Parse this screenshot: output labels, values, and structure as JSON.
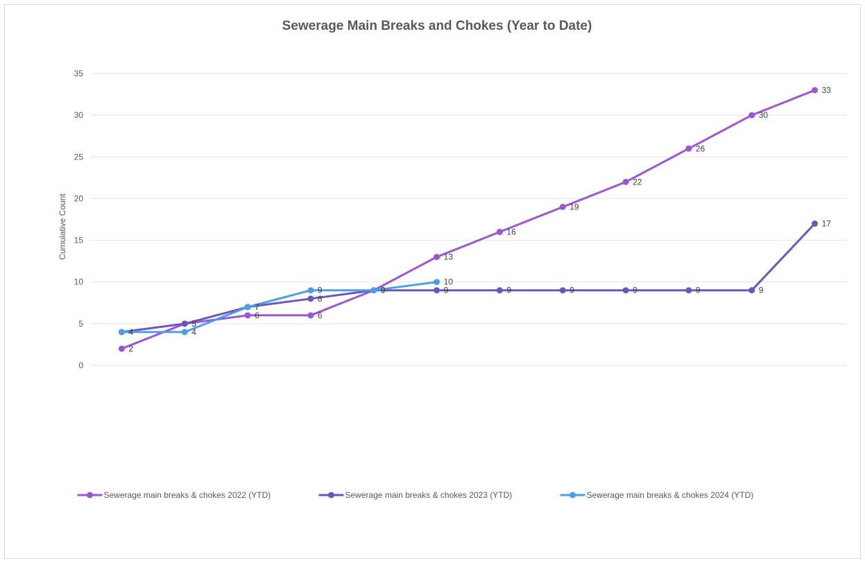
{
  "chart_data": {
    "type": "line",
    "title": "Sewerage Main Breaks and Chokes (Year to Date)",
    "xlabel": "",
    "ylabel": "Cumulative Count",
    "ylim": [
      0,
      35
    ],
    "yticks": [
      0,
      5,
      10,
      15,
      20,
      25,
      30,
      35
    ],
    "grid": true,
    "legend_position": "bottom",
    "series": [
      {
        "name": "Sewerage main breaks & chokes 2022 (YTD)",
        "color": "#9b55d6",
        "values": [
          2,
          5,
          6,
          6,
          9,
          13,
          16,
          19,
          22,
          26,
          30,
          33
        ],
        "labels": [
          "2",
          "5",
          "6",
          "6",
          "9",
          "13",
          "16",
          "19",
          "22",
          "26",
          "30",
          "33"
        ]
      },
      {
        "name": "Sewerage main breaks & chokes 2023 (YTD)",
        "color": "#6a56c0",
        "values": [
          4,
          5,
          7,
          8,
          9,
          9,
          9,
          9,
          9,
          9,
          9,
          17
        ],
        "labels": [
          "4",
          "5",
          "7",
          "8",
          "9",
          "9",
          "9",
          "9",
          "9",
          "9",
          "9",
          "17"
        ]
      },
      {
        "name": "Sewerage main breaks & chokes 2024 (YTD)",
        "color": "#4a9fe8",
        "values": [
          4,
          4,
          7,
          9,
          9,
          10
        ],
        "labels": [
          "4",
          "4",
          "7",
          "9",
          "9",
          "10"
        ]
      }
    ]
  }
}
